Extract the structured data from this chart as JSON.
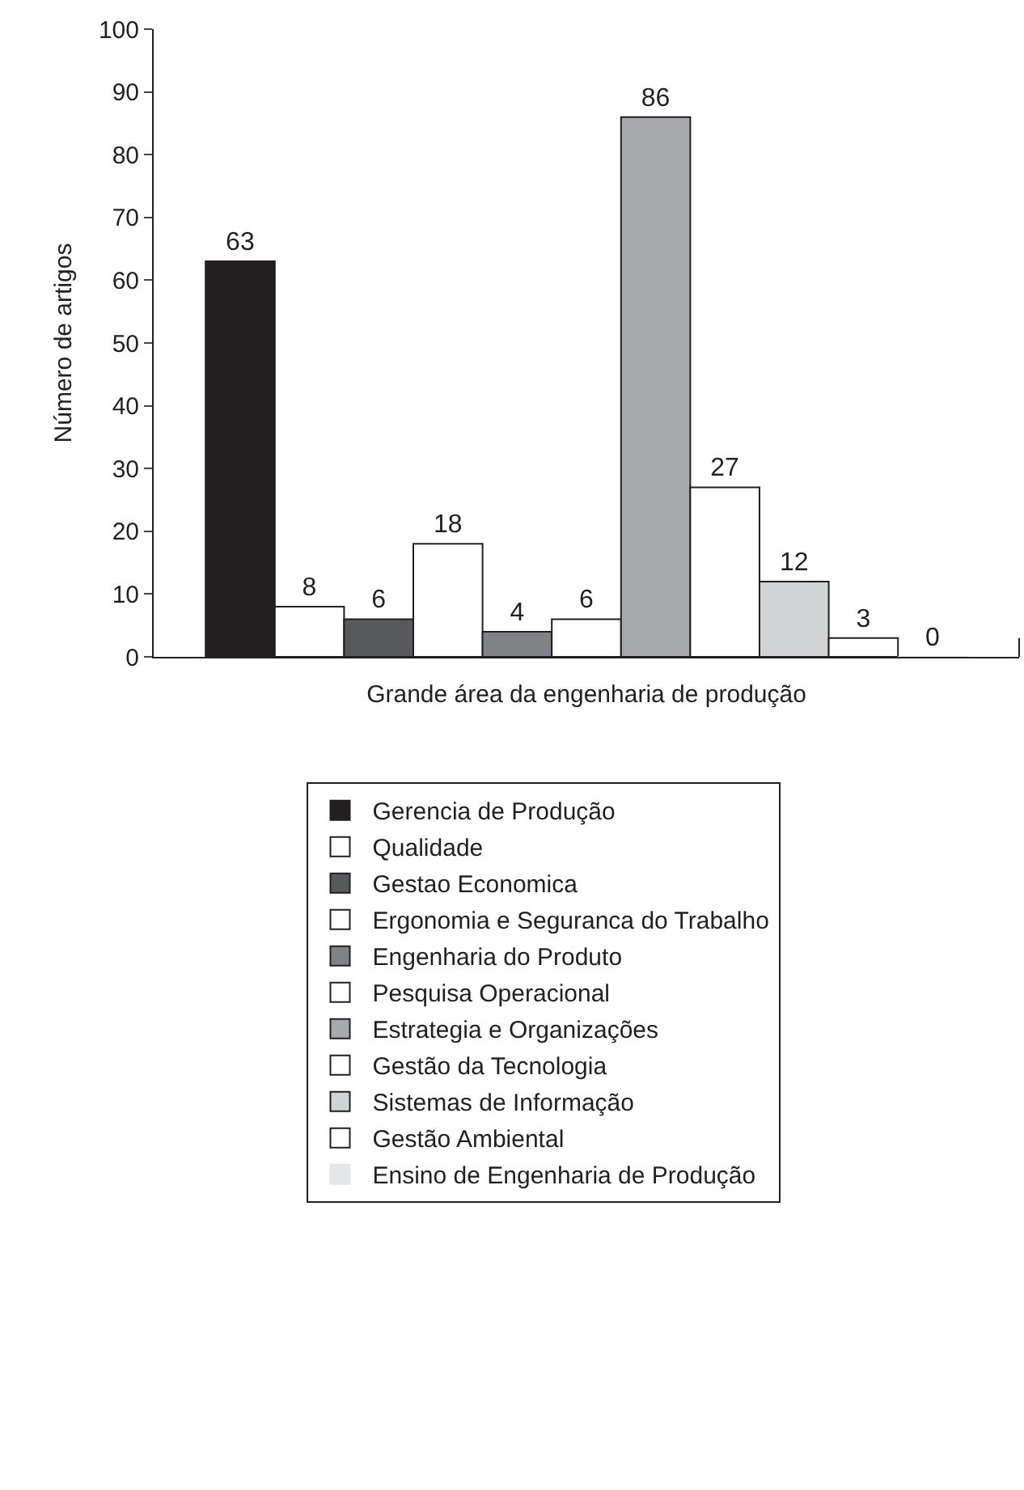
{
  "chart_data": {
    "type": "bar",
    "xlabel": "Grande área da engenharia de produção",
    "ylabel": "Número de artigos",
    "categories": [
      null
    ],
    "series": [
      {
        "name": "Gerencia de Produção",
        "color": "#231f20",
        "values": [
          63
        ]
      },
      {
        "name": "Qualidade",
        "color": "#ffffff",
        "values": [
          8
        ]
      },
      {
        "name": "Gestao Economica",
        "color": "#58595b",
        "values": [
          6
        ]
      },
      {
        "name": "Ergonomia e Seguranca do Trabalho",
        "color": "#ffffff",
        "values": [
          18
        ]
      },
      {
        "name": "Engenharia do Produto",
        "color": "#808285",
        "values": [
          4
        ]
      },
      {
        "name": "Pesquisa Operacional",
        "color": "#ffffff",
        "values": [
          6
        ]
      },
      {
        "name": "Estrategia e Organizações",
        "color": "#a7a9ac",
        "values": [
          86
        ]
      },
      {
        "name": "Gestão da Tecnologia",
        "color": "#ffffff",
        "values": [
          27
        ]
      },
      {
        "name": "Sistemas de Informação",
        "color": "#d1d3d4",
        "values": [
          12
        ]
      },
      {
        "name": "Gestão Ambiental",
        "color": "#ffffff",
        "values": [
          3
        ]
      },
      {
        "name": "Ensino de Engenharia de Produção",
        "color": "#e6e7e8",
        "values": [
          0
        ]
      }
    ],
    "ylim": [
      0,
      100
    ],
    "yticks": [
      0,
      10,
      20,
      30,
      40,
      50,
      60,
      70,
      80,
      90,
      100
    ],
    "grid": false,
    "data_labels": true,
    "legend": "bottom"
  }
}
